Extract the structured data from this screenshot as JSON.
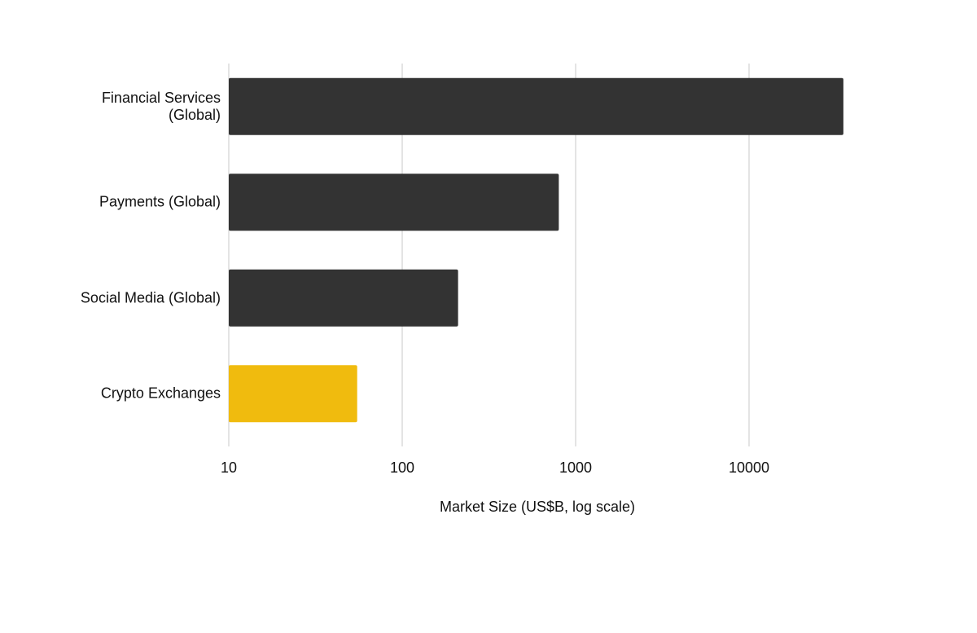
{
  "chart_data": {
    "type": "bar",
    "orientation": "horizontal",
    "categories": [
      "Financial Services (Global)",
      "Payments (Global)",
      "Social Media (Global)",
      "Crypto Exchanges"
    ],
    "values": [
      35000,
      800,
      210,
      55
    ],
    "colors": [
      "#333333",
      "#333333",
      "#333333",
      "#f0bb0e"
    ],
    "xlabel": "Market Size (US$B, log scale)",
    "xscale": "log",
    "xlim": [
      10,
      100000
    ],
    "xticks": [
      10,
      100,
      1000,
      10000
    ],
    "grid": true
  }
}
